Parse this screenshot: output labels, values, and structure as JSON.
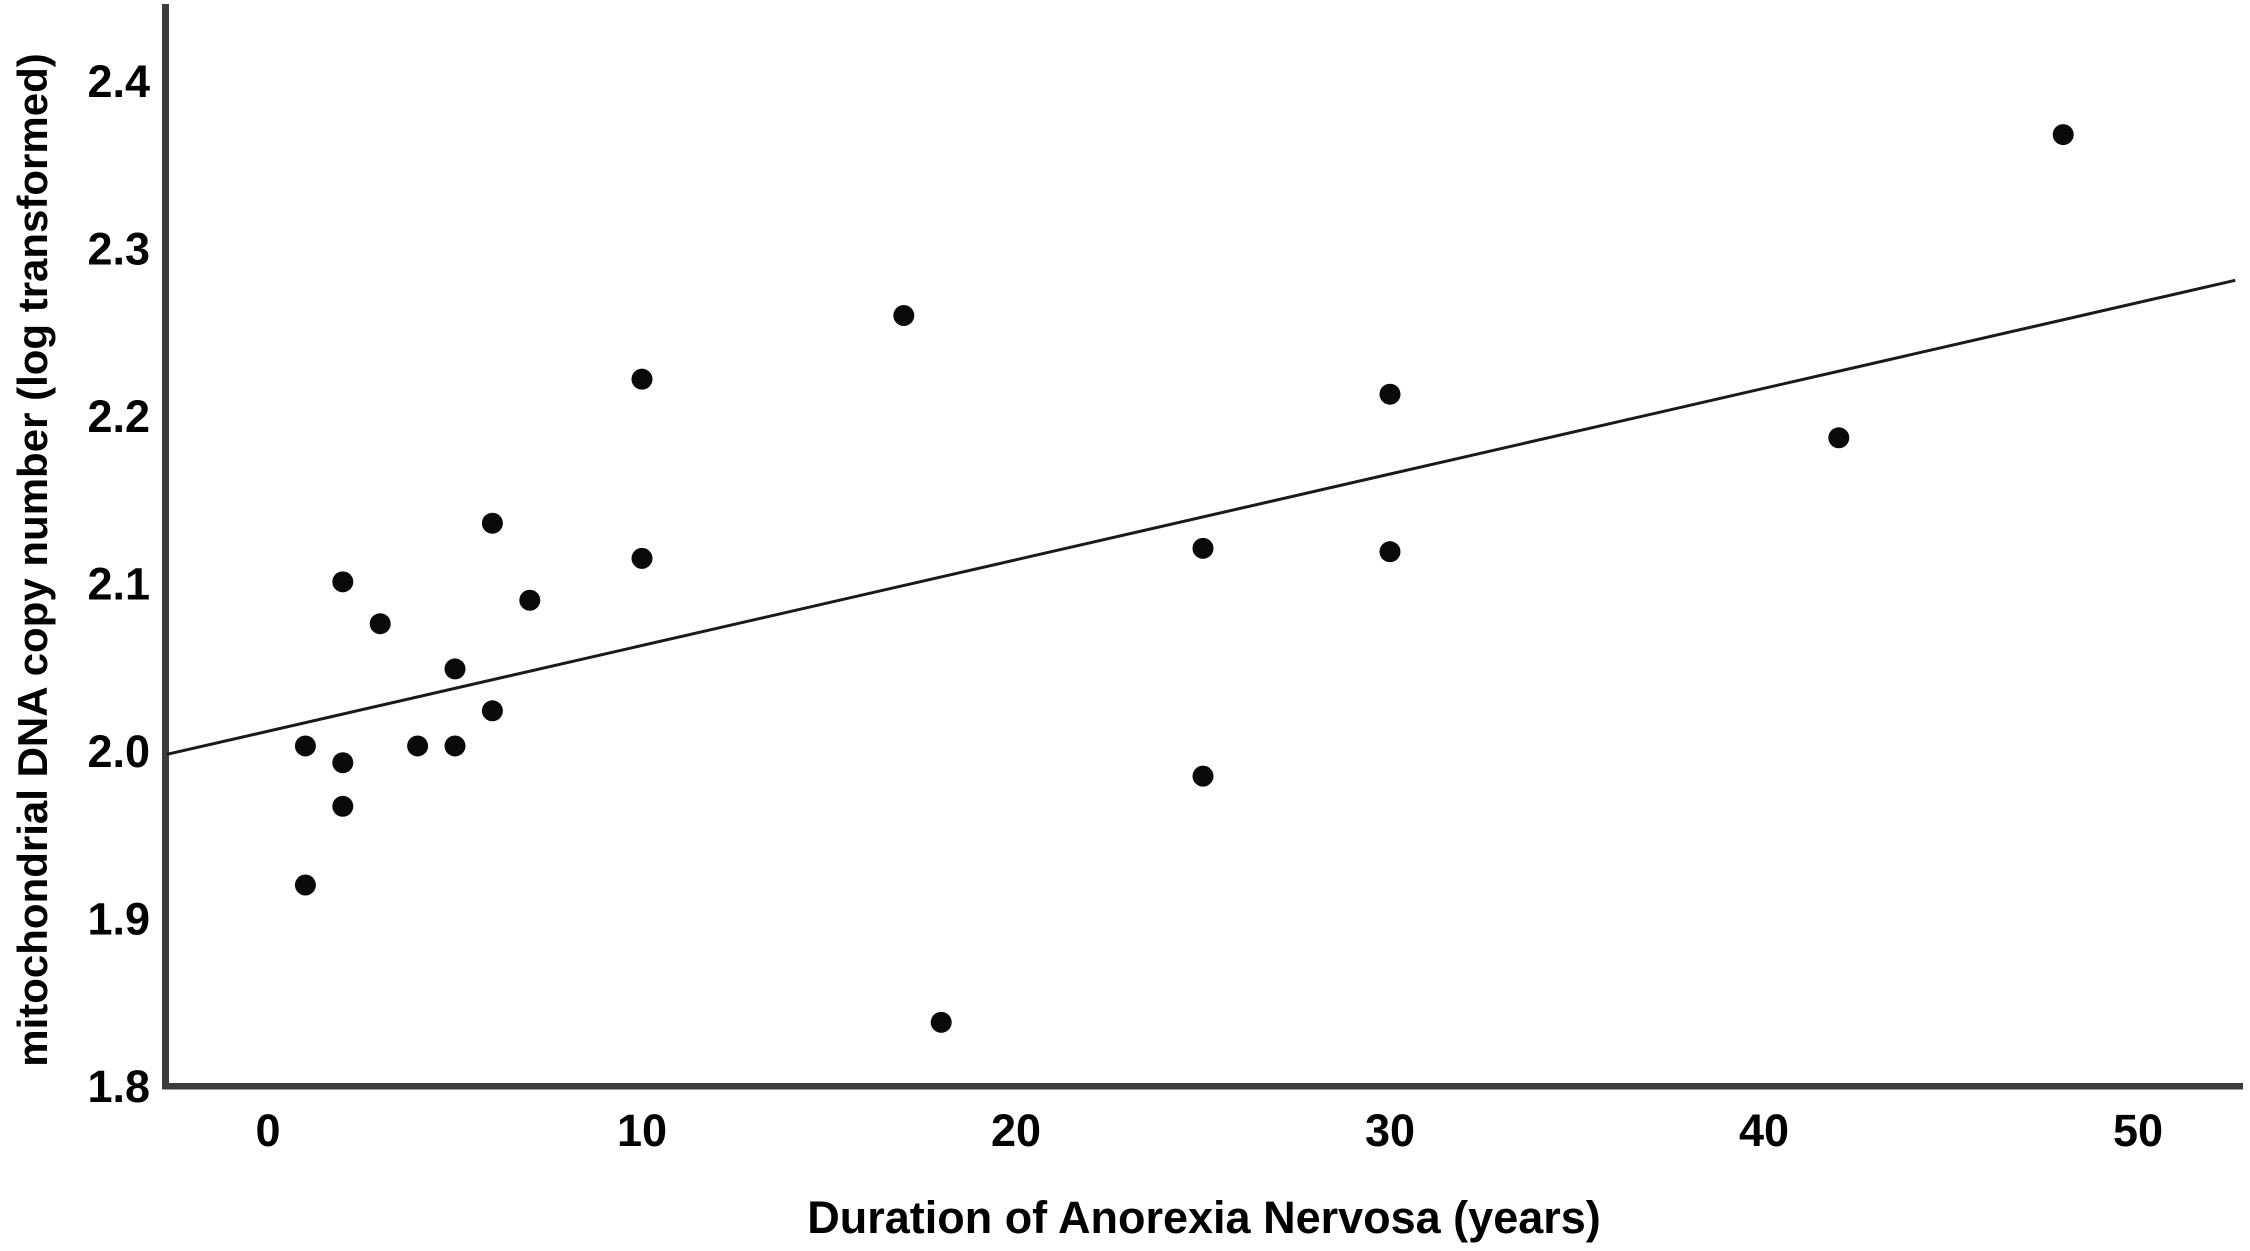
{
  "chart_data": {
    "type": "scatter",
    "title": "",
    "xlabel": "Duration of Anorexia Nervosa (years)",
    "ylabel": "mitochondrial DNA copy number (log transformed)",
    "x_ticks": [
      0,
      10,
      20,
      30,
      40,
      50
    ],
    "x_tick_labels": [
      "0",
      "10",
      "20",
      "30",
      "40",
      "50"
    ],
    "y_ticks": [
      1.8,
      1.9,
      2.0,
      2.1,
      2.2,
      2.3,
      2.4
    ],
    "y_tick_labels": [
      "1.8",
      "1.9",
      "2.0",
      "2.1",
      "2.2",
      "2.3",
      "2.4"
    ],
    "xlim": [
      -2.75,
      52.8
    ],
    "ylim": [
      1.8,
      2.443
    ],
    "grid": false,
    "legend": "none",
    "marker_color": "#0a0a0a",
    "trend_color": "#1a1a1a",
    "axis_color": "#3c3c3c",
    "points": [
      {
        "x": 1,
        "y": 1.92
      },
      {
        "x": 1,
        "y": 2.003
      },
      {
        "x": 2,
        "y": 1.967
      },
      {
        "x": 2,
        "y": 1.993
      },
      {
        "x": 2,
        "y": 2.101
      },
      {
        "x": 3,
        "y": 2.076
      },
      {
        "x": 4,
        "y": 2.003
      },
      {
        "x": 5,
        "y": 2.003
      },
      {
        "x": 5,
        "y": 2.049
      },
      {
        "x": 6,
        "y": 2.024
      },
      {
        "x": 6,
        "y": 2.136
      },
      {
        "x": 7,
        "y": 2.09
      },
      {
        "x": 10,
        "y": 2.115
      },
      {
        "x": 10,
        "y": 2.222
      },
      {
        "x": 17,
        "y": 2.26
      },
      {
        "x": 18,
        "y": 1.838
      },
      {
        "x": 25,
        "y": 1.985
      },
      {
        "x": 25,
        "y": 2.121
      },
      {
        "x": 30,
        "y": 2.119
      },
      {
        "x": 30,
        "y": 2.213
      },
      {
        "x": 42,
        "y": 2.187
      },
      {
        "x": 48,
        "y": 2.368
      }
    ],
    "trendline": {
      "type": "linear",
      "x1": -2.7,
      "y1": 1.998,
      "x2": 52.6,
      "y2": 2.281,
      "slope_per_year": 0.00511,
      "intercept_at_x0": 2.011
    }
  }
}
